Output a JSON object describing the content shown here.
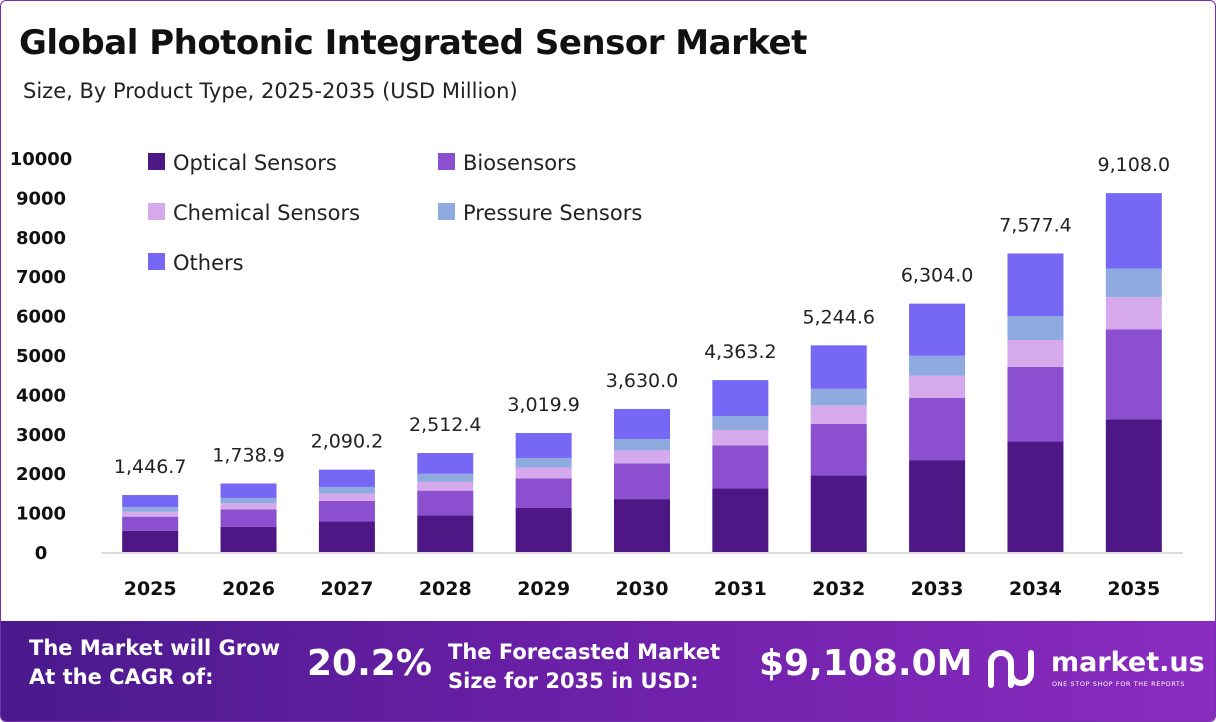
{
  "header": {
    "title": "Global Photonic Integrated Sensor Market",
    "subtitle": "Size, By Product Type, 2025-2035 (USD Million)"
  },
  "chart_data": {
    "type": "bar",
    "stacked": true,
    "categories": [
      "2025",
      "2026",
      "2027",
      "2028",
      "2029",
      "2030",
      "2031",
      "2032",
      "2033",
      "2034",
      "2035"
    ],
    "series": [
      {
        "name": "Optical Sensors",
        "color": "#4e1785",
        "values": [
          535,
          643,
          773,
          929,
          1117,
          1343,
          1614,
          1940,
          2332,
          2803,
          3370
        ]
      },
      {
        "name": "Biosensors",
        "color": "#8b4fcf",
        "values": [
          362,
          435,
          523,
          628,
          755,
          908,
          1091,
          1311,
          1576,
          1894,
          2277
        ]
      },
      {
        "name": "Chemical Sensors",
        "color": "#d6a8ec",
        "values": [
          130,
          156,
          188,
          226,
          272,
          327,
          393,
          472,
          567,
          682,
          820
        ]
      },
      {
        "name": "Pressure Sensors",
        "color": "#8eaadf",
        "values": [
          116,
          139,
          167,
          201,
          242,
          290,
          349,
          420,
          504,
          606,
          729
        ]
      },
      {
        "name": "Others",
        "color": "#7668f4",
        "values": [
          303.7,
          365.9,
          439.2,
          528.4,
          633.9,
          762.0,
          916.2,
          1101.6,
          1325.0,
          1592.4,
          1912.0
        ]
      }
    ],
    "totals": [
      "1,446.7",
      "1,738.9",
      "2,090.2",
      "2,512.4",
      "3,019.9",
      "3,630.0",
      "4,363.2",
      "5,244.6",
      "6,304.0",
      "7,577.4",
      "9,108.0"
    ],
    "total_values": [
      1446.7,
      1738.9,
      2090.2,
      2512.4,
      3019.9,
      3630.0,
      4363.2,
      5244.6,
      6304.0,
      7577.4,
      9108.0
    ],
    "yticks": [
      "0",
      "1000",
      "2000",
      "3000",
      "4000",
      "5000",
      "6000",
      "7000",
      "8000",
      "9000",
      "10000"
    ],
    "ylim": [
      0,
      10000
    ],
    "grid": false,
    "legend_position": "top-left"
  },
  "footer": {
    "cagr_label_line1": "The Market will Grow",
    "cagr_label_line2": "At the CAGR of:",
    "cagr_value": "20.2%",
    "forecast_label_line1": "The Forecasted Market",
    "forecast_label_line2": "Size for 2035 in USD:",
    "forecast_value": "$9,108.0M",
    "brand_name": "market.us",
    "brand_tagline": "ONE STOP SHOP FOR THE REPORTS"
  }
}
